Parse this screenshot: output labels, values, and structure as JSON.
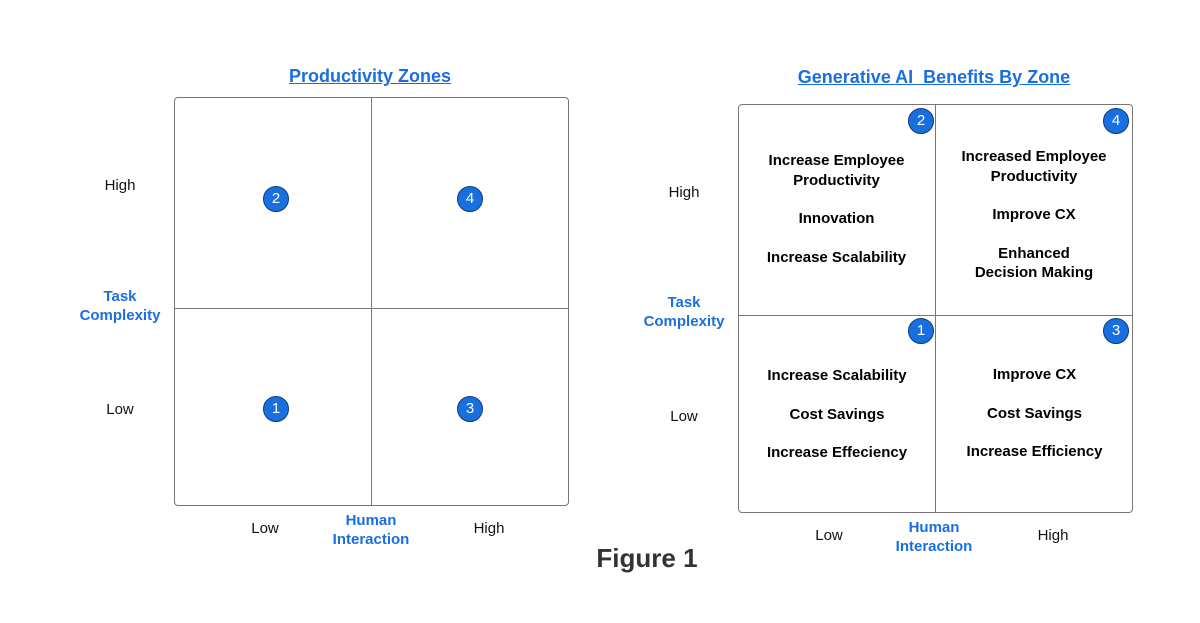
{
  "left": {
    "title": "Productivity Zones",
    "y_axis": {
      "label": "Task Complexity",
      "high": "High",
      "low": "Low"
    },
    "x_axis": {
      "label": "Human Interaction",
      "low": "Low",
      "high": "High"
    },
    "zones": {
      "top_left": "2",
      "top_right": "4",
      "bottom_left": "1",
      "bottom_right": "3"
    }
  },
  "right": {
    "title": "Generative AI  Benefits By Zone",
    "y_axis": {
      "label": "Task Complexity",
      "high": "High",
      "low": "Low"
    },
    "x_axis": {
      "label": "Human Interaction",
      "low": "Low",
      "high": "High"
    },
    "zones": {
      "top_left": {
        "number": "2",
        "items": [
          "Increase Employee Productivity",
          "Innovation",
          "Increase Scalability"
        ]
      },
      "top_right": {
        "number": "4",
        "items": [
          "Increased Employee Productivity",
          "Improve CX",
          "Enhanced Decision Making"
        ]
      },
      "bottom_left": {
        "number": "1",
        "items": [
          "Increase Scalability",
          "Cost Savings",
          "Increase Effeciency"
        ]
      },
      "bottom_right": {
        "number": "3",
        "items": [
          "Improve CX",
          "Cost Savings",
          "Increase Efficiency"
        ]
      }
    }
  },
  "caption": "Figure 1",
  "colors": {
    "accent": "#1a6fe0",
    "border": "#777777"
  }
}
